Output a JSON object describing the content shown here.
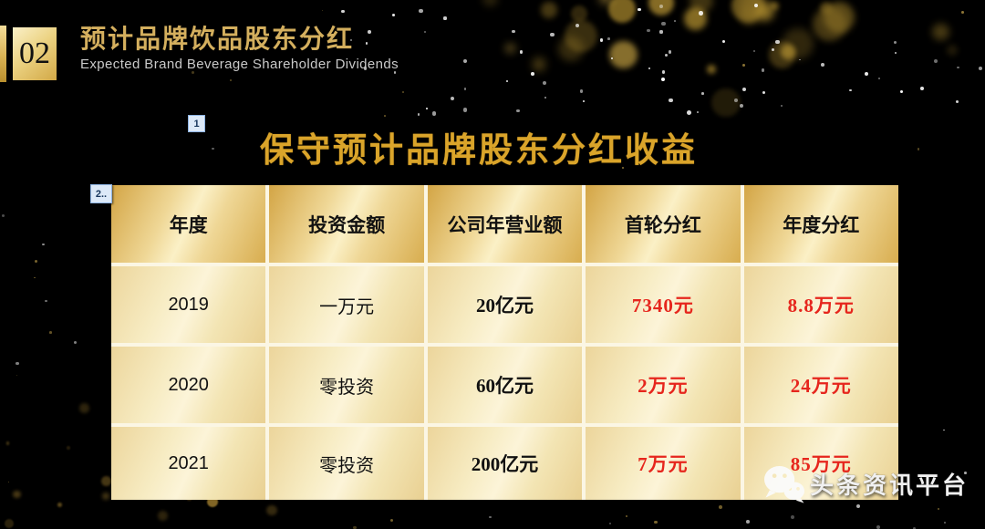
{
  "page": {
    "section_number": "02"
  },
  "header": {
    "title_cn": "预计品牌饮品股东分红",
    "subtitle_en": "Expected Brand Beverage Shareholder Dividends"
  },
  "annotations": {
    "marker1": "1",
    "marker2": "2.."
  },
  "main": {
    "title": "保守预计品牌股东分红收益"
  },
  "table": {
    "headers": [
      "年度",
      "投资金额",
      "公司年营业额",
      "首轮分红",
      "年度分红"
    ],
    "rows": [
      [
        "2019",
        "一万元",
        "20亿元",
        "7340元",
        "8.8万元"
      ],
      [
        "2020",
        "零投资",
        "60亿元",
        "2万元",
        "24万元"
      ],
      [
        "2021",
        "零投资",
        "200亿元",
        "7万元",
        "85万元"
      ]
    ]
  },
  "watermark": {
    "icon": "wechat-icon",
    "label": "头条资讯平台"
  },
  "colors": {
    "background": "#000000",
    "gold_accent": "#d4af5e",
    "main_title_gold": "#daa42a",
    "table_header_gold": "#e3bc62",
    "table_cell_cream": "#f7ecc3",
    "table_grid_line": "#fbf6e4",
    "red_value": "#e6261d",
    "marker_blue_bg": "#dce9f8",
    "marker_blue_border": "#8eb4e3",
    "subtitle_gray": "#c9c9c9"
  }
}
